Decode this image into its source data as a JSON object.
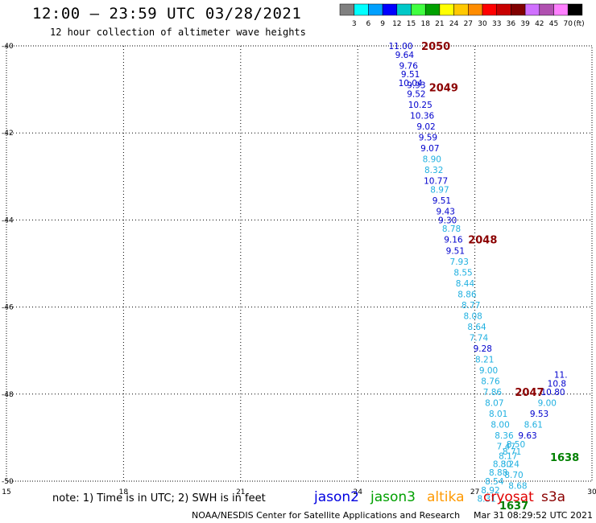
{
  "header": {
    "title": "12:00 – 23:59 UTC 03/28/2021",
    "subtitle": "12 hour collection of altimeter wave heights"
  },
  "legend": {
    "colors": [
      "#808080",
      "#00ffff",
      "#00a0ff",
      "#0000ff",
      "#00c8c8",
      "#40ff40",
      "#00a000",
      "#ffff00",
      "#ffc800",
      "#ff8c00",
      "#ff0000",
      "#c80000",
      "#800000",
      "#d070ff",
      "#b050b0",
      "#ff80ff",
      "#000000"
    ],
    "labels": [
      "3",
      "6",
      "9",
      "12",
      "15",
      "18",
      "21",
      "24",
      "27",
      "30",
      "33",
      "36",
      "39",
      "42",
      "45",
      "70"
    ],
    "unit": "(ft)"
  },
  "chart_data": {
    "type": "scatter",
    "x_ticks": [
      "15",
      "18",
      "21",
      "24",
      "27",
      "30"
    ],
    "y_ticks": [
      "-40",
      "-42",
      "-44",
      "-46",
      "-48",
      "-50"
    ],
    "xlim": [
      15,
      30
    ],
    "ylim": [
      -50,
      -40
    ],
    "grid": true,
    "points": [
      {
        "v": "11.00",
        "x": 25.1,
        "y": -40.0,
        "c": "#0000cd"
      },
      {
        "v": "9.64",
        "x": 25.2,
        "y": -40.2,
        "c": "#0000cd"
      },
      {
        "v": "9.76",
        "x": 25.3,
        "y": -40.45,
        "c": "#0000cd"
      },
      {
        "v": "9.51",
        "x": 25.35,
        "y": -40.65,
        "c": "#0000cd"
      },
      {
        "v": "10.04",
        "x": 25.35,
        "y": -40.85,
        "c": "#0000cd"
      },
      {
        "v": "9.93",
        "x": 25.5,
        "y": -40.9,
        "c": "#0000cd"
      },
      {
        "v": "9.52",
        "x": 25.5,
        "y": -41.1,
        "c": "#0000cd"
      },
      {
        "v": "10.25",
        "x": 25.6,
        "y": -41.35,
        "c": "#0000cd"
      },
      {
        "v": "10.36",
        "x": 25.65,
        "y": -41.6,
        "c": "#0000cd"
      },
      {
        "v": "9.02",
        "x": 25.75,
        "y": -41.85,
        "c": "#0000cd"
      },
      {
        "v": "9.59",
        "x": 25.8,
        "y": -42.1,
        "c": "#0000cd"
      },
      {
        "v": "9.07",
        "x": 25.85,
        "y": -42.35,
        "c": "#0000cd"
      },
      {
        "v": "8.90",
        "x": 25.9,
        "y": -42.6,
        "c": "#20b0e0"
      },
      {
        "v": "8.32",
        "x": 25.95,
        "y": -42.85,
        "c": "#20b0e0"
      },
      {
        "v": "10.77",
        "x": 26.0,
        "y": -43.1,
        "c": "#0000cd"
      },
      {
        "v": "8.97",
        "x": 26.1,
        "y": -43.3,
        "c": "#20b0e0"
      },
      {
        "v": "9.51",
        "x": 26.15,
        "y": -43.55,
        "c": "#0000cd"
      },
      {
        "v": "9.43",
        "x": 26.25,
        "y": -43.8,
        "c": "#0000cd"
      },
      {
        "v": "9.30",
        "x": 26.3,
        "y": -44.0,
        "c": "#0000cd"
      },
      {
        "v": "8.78",
        "x": 26.4,
        "y": -44.2,
        "c": "#20b0e0"
      },
      {
        "v": "9.16",
        "x": 26.45,
        "y": -44.45,
        "c": "#0000cd"
      },
      {
        "v": "9.51",
        "x": 26.5,
        "y": -44.7,
        "c": "#0000cd"
      },
      {
        "v": "7.93",
        "x": 26.6,
        "y": -44.95,
        "c": "#20b0e0"
      },
      {
        "v": "8.55",
        "x": 26.7,
        "y": -45.2,
        "c": "#20b0e0"
      },
      {
        "v": "8.44",
        "x": 26.75,
        "y": -45.45,
        "c": "#20b0e0"
      },
      {
        "v": "8.86",
        "x": 26.8,
        "y": -45.7,
        "c": "#20b0e0"
      },
      {
        "v": "8.77",
        "x": 26.9,
        "y": -45.95,
        "c": "#20b0e0"
      },
      {
        "v": "8.08",
        "x": 26.95,
        "y": -46.2,
        "c": "#20b0e0"
      },
      {
        "v": "8.64",
        "x": 27.05,
        "y": -46.45,
        "c": "#20b0e0"
      },
      {
        "v": "7.74",
        "x": 27.1,
        "y": -46.7,
        "c": "#20b0e0"
      },
      {
        "v": "9.28",
        "x": 27.2,
        "y": -46.95,
        "c": "#0000cd"
      },
      {
        "v": "8.21",
        "x": 27.25,
        "y": -47.2,
        "c": "#20b0e0"
      },
      {
        "v": "9.00",
        "x": 27.35,
        "y": -47.45,
        "c": "#20b0e0"
      },
      {
        "v": "8.76",
        "x": 27.4,
        "y": -47.7,
        "c": "#20b0e0"
      },
      {
        "v": "7.86",
        "x": 27.45,
        "y": -47.95,
        "c": "#20b0e0"
      },
      {
        "v": "8.07",
        "x": 27.5,
        "y": -48.2,
        "c": "#20b0e0"
      },
      {
        "v": "8.01",
        "x": 27.6,
        "y": -48.45,
        "c": "#20b0e0"
      },
      {
        "v": "8.00",
        "x": 27.65,
        "y": -48.7,
        "c": "#20b0e0"
      },
      {
        "v": "8.36",
        "x": 27.75,
        "y": -48.95,
        "c": "#20b0e0"
      },
      {
        "v": "7.47",
        "x": 27.8,
        "y": -49.2,
        "c": "#20b0e0"
      },
      {
        "v": "8.17",
        "x": 27.85,
        "y": -49.42,
        "c": "#20b0e0"
      },
      {
        "v": "8.30",
        "x": 27.7,
        "y": -49.6,
        "c": "#20b0e0"
      },
      {
        "v": "8.88",
        "x": 27.6,
        "y": -49.8,
        "c": "#20b0e0"
      },
      {
        "v": "8.54",
        "x": 27.5,
        "y": -50.0,
        "c": "#20b0e0"
      },
      {
        "v": "8.92",
        "x": 27.4,
        "y": -50.2,
        "c": "#20b0e0"
      },
      {
        "v": "8.31",
        "x": 27.3,
        "y": -50.4,
        "c": "#20b0e0"
      },
      {
        "v": "8.50",
        "x": 28.05,
        "y": -49.15,
        "c": "#20b0e0"
      },
      {
        "v": "8.71",
        "x": 27.95,
        "y": -49.32,
        "c": "#20b0e0"
      },
      {
        "v": "8.24",
        "x": 27.9,
        "y": -49.6,
        "c": "#20b0e0"
      },
      {
        "v": "8.70",
        "x": 28.0,
        "y": -49.85,
        "c": "#20b0e0"
      },
      {
        "v": "8.68",
        "x": 28.1,
        "y": -50.1,
        "c": "#20b0e0"
      },
      {
        "v": "9.63",
        "x": 28.35,
        "y": -48.95,
        "c": "#0000cd"
      },
      {
        "v": "8.61",
        "x": 28.5,
        "y": -48.7,
        "c": "#20b0e0"
      },
      {
        "v": "9.53",
        "x": 28.65,
        "y": -48.45,
        "c": "#0000cd"
      },
      {
        "v": "9.00",
        "x": 28.85,
        "y": -48.2,
        "c": "#20b0e0"
      },
      {
        "v": "10.80",
        "x": 29.0,
        "y": -47.95,
        "c": "#0000cd"
      },
      {
        "v": "10.8",
        "x": 29.1,
        "y": -47.75,
        "c": "#0000cd"
      },
      {
        "v": "11.",
        "x": 29.2,
        "y": -47.55,
        "c": "#0000cd"
      }
    ],
    "passes": [
      {
        "label": "2050",
        "x": 26.0,
        "y": -40.0,
        "c": "#8b0000"
      },
      {
        "label": "2049",
        "x": 26.2,
        "y": -40.95,
        "c": "#8b0000"
      },
      {
        "label": "2048",
        "x": 27.2,
        "y": -44.45,
        "c": "#8b0000"
      },
      {
        "label": "2047",
        "x": 28.4,
        "y": -47.95,
        "c": "#8b0000"
      },
      {
        "label": "1638",
        "x": 29.3,
        "y": -49.45,
        "c": "#008000"
      },
      {
        "label": "1637",
        "x": 28.0,
        "y": -50.55,
        "c": "#008000"
      }
    ]
  },
  "note": "note:  1) Time is in UTC;  2) SWH is in feet",
  "satellites": [
    {
      "name": "jason2",
      "color": "#0000e0"
    },
    {
      "name": "jason3",
      "color": "#00a000"
    },
    {
      "name": "altika",
      "color": "#ff9900"
    },
    {
      "name": "cryosat",
      "color": "#e00000"
    },
    {
      "name": "s3a",
      "color": "#8b0000"
    }
  ],
  "footer": {
    "credit": "NOAA/NESDIS Center for Satellite Applications and Research",
    "timestamp": "Mar 31 08:29:52 UTC 2021"
  }
}
